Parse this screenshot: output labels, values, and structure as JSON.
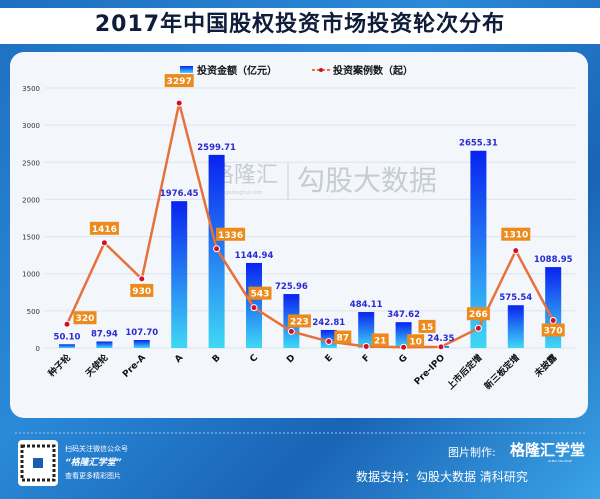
{
  "title": "2017年中国股权投资市场投资轮次分布",
  "chart_data": {
    "type": "bar+line",
    "title": "2017年中国股权投资市场投资轮次分布",
    "categories": [
      "种子轮",
      "天使轮",
      "Pre-A",
      "A",
      "B",
      "C",
      "D",
      "E",
      "F",
      "G",
      "Pre-IPO",
      "上市后定增",
      "新三板定增",
      "未披露"
    ],
    "series": [
      {
        "name": "投资金额（亿元）",
        "type": "bar",
        "color": "#1a3cf0",
        "values": [
          50.1,
          87.94,
          107.7,
          1976.45,
          2599.71,
          1144.94,
          725.96,
          242.81,
          484.11,
          347.62,
          24.35,
          2655.31,
          575.54,
          1088.95
        ],
        "labels": [
          "50.10",
          "87.94",
          "107.70",
          "1976.45",
          "2599.71",
          "1144.94",
          "725.96",
          "242.81",
          "484.11",
          "347.62",
          "24.35",
          "2655.31",
          "575.54",
          "1088.95"
        ]
      },
      {
        "name": "投资案例数（起）",
        "type": "line",
        "color": "#e8703a",
        "values": [
          320,
          1416,
          930,
          3297,
          1336,
          543,
          223,
          87,
          21,
          10,
          15,
          266,
          1310,
          370
        ]
      }
    ],
    "ylim": [
      0,
      3500
    ],
    "yticks": [
      "0",
      "500",
      "1000",
      "1500",
      "2000",
      "2500",
      "3000",
      "3500"
    ],
    "grid": true,
    "legend": "top"
  },
  "watermark": {
    "brand": "格隆汇",
    "site": "www.gelonghui.com",
    "text": "勾股大数据"
  },
  "footer": {
    "qr_line1": "扫码关注微信公众号",
    "qr_line2": "“格隆汇学堂”",
    "qr_line3": "查看更多精彩图片",
    "made_by_label": "图片制作:",
    "made_by": "格隆汇学堂",
    "made_by_sub": "GURU COLLEGE",
    "data_source": "数据支持：勾股大数据  清科研究"
  }
}
